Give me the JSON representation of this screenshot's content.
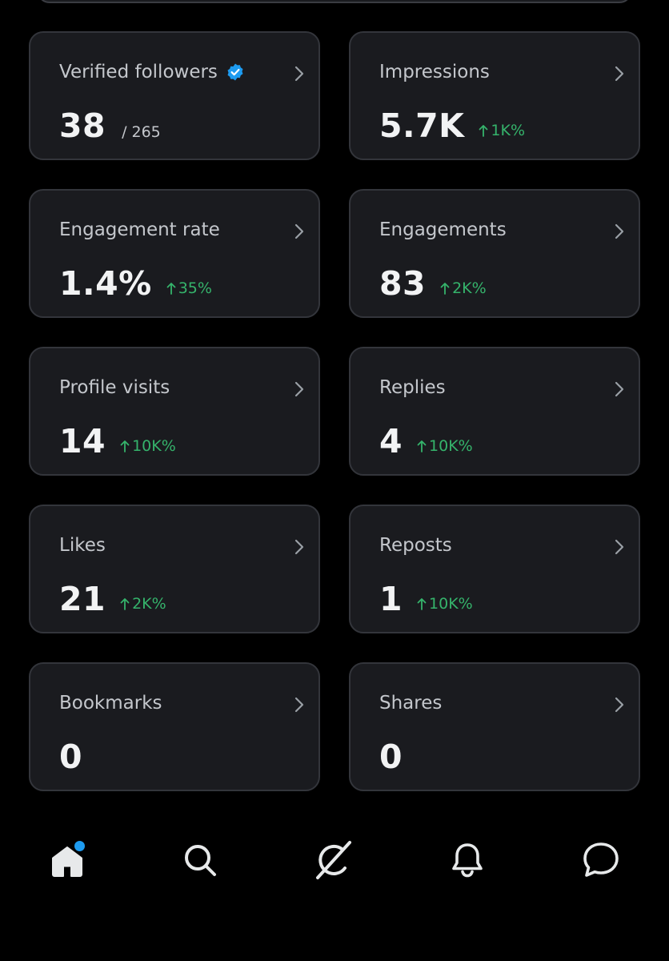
{
  "colors": {
    "background": "#000000",
    "card": "#1a1b1f",
    "card_border": "#33353b",
    "positive": "#35b36b",
    "accent": "#1d9bf0"
  },
  "metrics": [
    {
      "label": "Verified followers",
      "value": "38",
      "sub": "/ 265",
      "change": null,
      "icon": "verified-badge-icon"
    },
    {
      "label": "Impressions",
      "value": "5.7K",
      "sub": null,
      "change": "1K%"
    },
    {
      "label": "Engagement rate",
      "value": "1.4%",
      "sub": null,
      "change": "35%"
    },
    {
      "label": "Engagements",
      "value": "83",
      "sub": null,
      "change": "2K%"
    },
    {
      "label": "Profile visits",
      "value": "14",
      "sub": null,
      "change": "10K%"
    },
    {
      "label": "Replies",
      "value": "4",
      "sub": null,
      "change": "10K%"
    },
    {
      "label": "Likes",
      "value": "21",
      "sub": null,
      "change": "2K%"
    },
    {
      "label": "Reposts",
      "value": "1",
      "sub": null,
      "change": "10K%"
    },
    {
      "label": "Bookmarks",
      "value": "0",
      "sub": null,
      "change": null
    },
    {
      "label": "Shares",
      "value": "0",
      "sub": null,
      "change": null
    }
  ],
  "bottom_nav": [
    {
      "name": "home",
      "icon": "home-icon",
      "has_notification_dot": true
    },
    {
      "name": "search",
      "icon": "search-icon",
      "has_notification_dot": false
    },
    {
      "name": "grok",
      "icon": "grok-icon",
      "has_notification_dot": false
    },
    {
      "name": "notifications",
      "icon": "bell-icon",
      "has_notification_dot": false
    },
    {
      "name": "messages",
      "icon": "chat-icon",
      "has_notification_dot": false
    }
  ]
}
